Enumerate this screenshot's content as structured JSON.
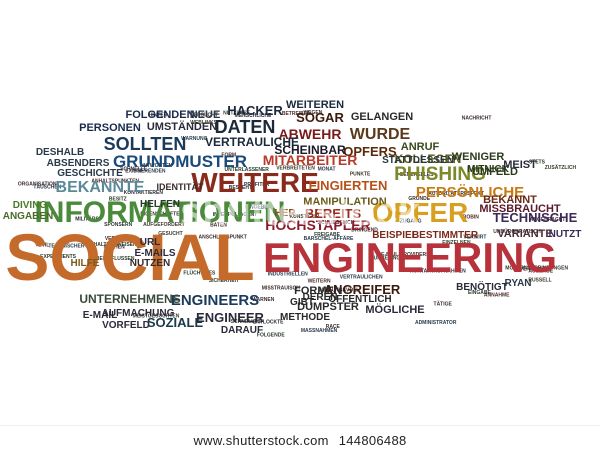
{
  "watermark_text": "shutterstock",
  "footer": {
    "site": "www.shutterstock.com",
    "image_number": "144806488"
  },
  "big_words": [
    {
      "text": "SOCIAL",
      "color": "#c46a2a"
    },
    {
      "text": "ENGINEERING",
      "color": "#b7323a"
    },
    {
      "text": "INFORMATIONEN",
      "color": "#4a8a3a"
    },
    {
      "text": "WEITERE",
      "color": "#8a2a1a"
    },
    {
      "text": "OPFER",
      "color": "#d8a020"
    },
    {
      "text": "GRUNDMUSTER",
      "color": "#1a4a7a"
    },
    {
      "text": "PHISHING",
      "color": "#7a8a2a"
    },
    {
      "text": "SOLLTEN",
      "color": "#1a3a5a"
    },
    {
      "text": "BEKANNTE",
      "color": "#5a8a9a"
    },
    {
      "text": "DATEN",
      "color": "#1a2a3a"
    },
    {
      "text": "HACKER",
      "color": "#1a2a3a"
    },
    {
      "text": "WURDE",
      "color": "#5a3a1a"
    },
    {
      "text": "ABWEHR",
      "color": "#7a1a1a"
    },
    {
      "text": "SOGAR",
      "color": "#3a1a0a"
    },
    {
      "text": "TECHNISCHE",
      "color": "#3a2a5a"
    },
    {
      "text": "HOCHSTAPLER",
      "color": "#8a1a2a"
    },
    {
      "text": "PERSÖNLICHE",
      "color": "#c87a10"
    },
    {
      "text": "MITARBEITER",
      "color": "#b83a2a"
    },
    {
      "text": "BEREITS",
      "color": "#9a2a1a"
    },
    {
      "text": "FINGIERTEN",
      "color": "#b8501a"
    },
    {
      "text": "ENGINEERS",
      "color": "#1a3a5a"
    },
    {
      "text": "UNTERNEHMENS",
      "color": "#3a4a3a"
    },
    {
      "text": "SOZIALE",
      "color": "#1a3a4a"
    },
    {
      "text": "ANGREIFER",
      "color": "#3a1a0a"
    },
    {
      "text": "OPFERS",
      "color": "#5a2a0a"
    },
    {
      "text": "SCHEINBAR",
      "color": "#1a1a2a"
    },
    {
      "text": "VERTRAULICHE",
      "color": "#1a2a3a"
    },
    {
      "text": "KOLLEGEN",
      "color": "#5a5a1a"
    },
    {
      "text": "ANRUF",
      "color": "#3a4a1a"
    },
    {
      "text": "MANIPULATION",
      "color": "#6a5a1a"
    },
    {
      "text": "DUMPSTER",
      "color": "#2a2a2a"
    },
    {
      "text": "MÖGLICHE",
      "color": "#2a2a3a"
    },
    {
      "text": "ENGINEER",
      "color": "#2a2a3a"
    },
    {
      "text": "FORMEN",
      "color": "#2a2a2a"
    },
    {
      "text": "GELANGEN",
      "color": "#2a2a2a"
    },
    {
      "text": "WEITEREN",
      "color": "#1a2a3a"
    },
    {
      "text": "MISSBRAUCHT",
      "color": "#5a1a2a"
    },
    {
      "text": "BEKANNT",
      "color": "#6a2a1a"
    },
    {
      "text": "VARIANTE",
      "color": "#4a2a3a"
    },
    {
      "text": "NUTZT",
      "color": "#3a2a5a"
    },
    {
      "text": "UMFELD",
      "color": "#2a3a1a"
    },
    {
      "text": "MEIST",
      "color": "#2a2a3a"
    },
    {
      "text": "WENIGER",
      "color": "#2a3a1a"
    },
    {
      "text": "STATTDESSEN",
      "color": "#2a3a3a"
    },
    {
      "text": "MITNICK",
      "color": "#2a3a1a"
    },
    {
      "text": "FOLGENDEN",
      "color": "#1a2a4a"
    },
    {
      "text": "PERSONEN",
      "color": "#1a2a4a"
    },
    {
      "text": "UMSTÄNDEN",
      "color": "#2a2a3a"
    },
    {
      "text": "NEUE",
      "color": "#2a3a4a"
    },
    {
      "text": "HELFEN",
      "color": "#2a3a2a"
    },
    {
      "text": "ABSENDERS",
      "color": "#2a3a4a"
    },
    {
      "text": "DESHALB",
      "color": "#2a3a4a"
    },
    {
      "text": "GESCHICHTE",
      "color": "#2a3a4a"
    },
    {
      "text": "DIVING",
      "color": "#4a7a2a"
    },
    {
      "text": "ANGABEN",
      "color": "#4a6a2a"
    },
    {
      "text": "E-MAILS",
      "color": "#2a2a3a"
    },
    {
      "text": "URL",
      "color": "#2a2a3a"
    },
    {
      "text": "NUTZEN",
      "color": "#3a2a2a"
    },
    {
      "text": "HILFE",
      "color": "#7a5a1a"
    },
    {
      "text": "AUFMACHUNG",
      "color": "#2a2a3a"
    },
    {
      "text": "E-MAIL",
      "color": "#2a2a3a"
    },
    {
      "text": "VORFELD",
      "color": "#2a2a3a"
    },
    {
      "text": "DARAUF",
      "color": "#2a2a3a"
    },
    {
      "text": "METHODE",
      "color": "#2a2a2a"
    },
    {
      "text": "GIBT",
      "color": "#2a2a2a"
    },
    {
      "text": "DEREN",
      "color": "#2a2a2a"
    },
    {
      "text": "ÖFFENTLICH",
      "color": "#2a2a2a"
    },
    {
      "text": "BENÖTIGT",
      "color": "#2a2a3a"
    },
    {
      "text": "RYAN",
      "color": "#2a3a4a"
    },
    {
      "text": "BEISPIEL",
      "color": "#7a2a1a"
    },
    {
      "text": "BESTIMMTER",
      "color": "#7a2a1a"
    },
    {
      "text": "HER",
      "color": "#8a4a1a"
    },
    {
      "text": "IDENTITÄT",
      "color": "#3a2a2a"
    }
  ],
  "small_words": [
    "MILITÄRS",
    "E-MAIL-PROVIDERS",
    "VERHALTENSWEISEN",
    "VERTRAUEN",
    "EXISTIERENDEN",
    "SCHNELLES",
    "PROFITER",
    "EIGENSCHAFTEN",
    "UNTERLASSENER",
    "ANHALTSPUNKTEN",
    "BARSCHEL-AFFÄRE",
    "ZUSÄTZLICH",
    "KONTAKTAUFNAHMEN",
    "GRÜNDE",
    "BEEINFLUSSEN",
    "FORM",
    "ADMINISTRATOR",
    "GESUCHT",
    "KONTAKTIEREN",
    "TÄTIGE",
    "FLÜCHTIGES",
    "AUSSAGE",
    "MASSNAHMEN",
    "AUFGEFORDERT",
    "ANTWORTEN",
    "WEGEN",
    "UNBEDINGT",
    "BATEN",
    "VERWIRT",
    "WEBLINKS",
    "AUTORITÄTSRESPEKT",
    "SACHEN",
    "EXPERIMENTS",
    "VERSENDET",
    "INDUSTRIELLEN",
    "VERBREITETEN",
    "ENTLOCKTE",
    "NACHRICHT",
    "STETS",
    "BETREIBEN",
    "EINGEBEN",
    "SICHERHEIT",
    "WIRKUNGSVOLL",
    "VERSUCHT",
    "FOLGENDE",
    "ROBIN",
    "BSI",
    "RUSSELL",
    "EVIL",
    "SCHNELLE",
    "EINGABE",
    "GENERELLES",
    "ZUGANG",
    "NUTZLOSE",
    "HINTER",
    "RACE",
    "FREIGABE",
    "SCHLIESSLICH",
    "TÄUSCHEN",
    "PUNKTE",
    "INTERPOL-AGENT",
    "WARNEN",
    "EINZELNEN",
    "WEITERN",
    "MONAT",
    "KÜNSTIGUR",
    "BESTEHT",
    "ANSCHLUSSPUNKT",
    "SPONSERN",
    "ANGEBRACHT",
    "TECHNISCHER",
    "MEISTGESUCHTEN",
    "MENSCHLICHE",
    "MISSTRAUISCH",
    "MODERNVERBINDUNGEN",
    "DRINGEND",
    "VERTRAULICHEN",
    "UNBÜROKRATISCH",
    "FALL",
    "ORGANISATION",
    "BESITZ",
    "ANNAHME",
    "WARNUNG"
  ]
}
